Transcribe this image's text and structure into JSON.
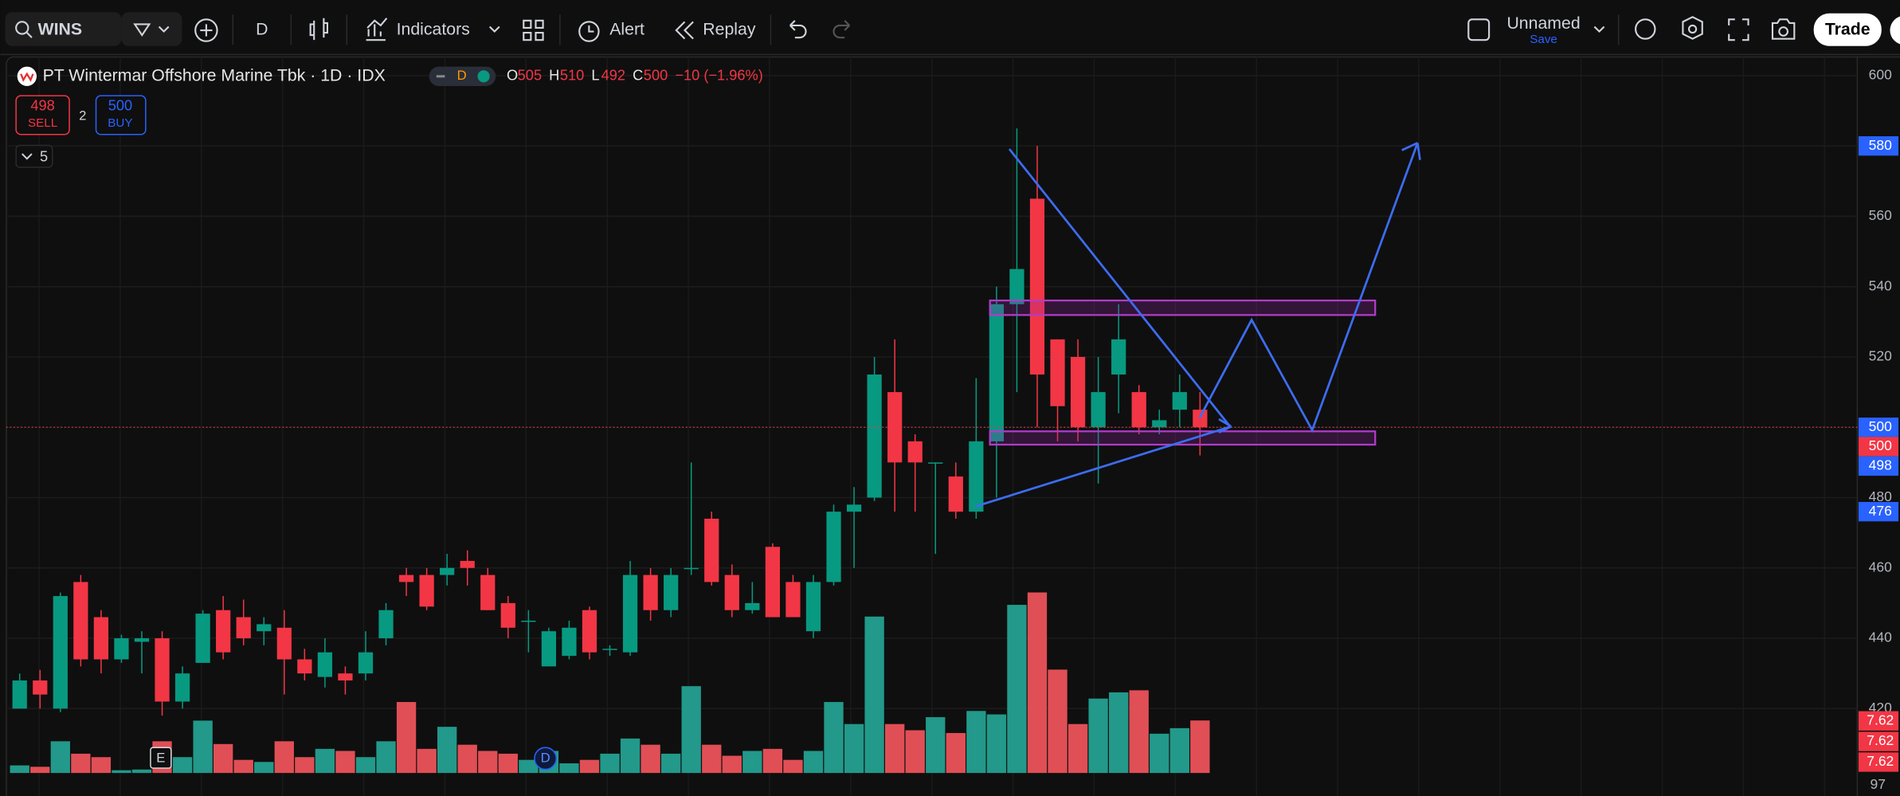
{
  "toolbar": {
    "symbol": "WINS",
    "interval": "D",
    "indicators": "Indicators",
    "alert": "Alert",
    "replay": "Replay",
    "layout": "Unnamed",
    "save": "Save",
    "trade": "Trade"
  },
  "legend": {
    "title": "PT Wintermar Offshore Marine Tbk · 1D · IDX",
    "d": "D",
    "o_label": "O",
    "o": 505,
    "h_label": "H",
    "h": 510,
    "l_label": "L",
    "l": 492,
    "c_label": "C",
    "c": 500,
    "change": "−10 (−1.96%)",
    "sell_price": 498,
    "sell": "SELL",
    "spread": 2,
    "buy_price": 500,
    "buy": "BUY",
    "collapse": 5
  },
  "chart": {
    "type": "candlestick",
    "up_color": "#089981",
    "down_color": "#f23645",
    "volume_up_color": "#22998a",
    "volume_down_color": "#e04f55",
    "ylim": [
      401,
      606
    ],
    "yticks": [
      420,
      440,
      460,
      480,
      500,
      520,
      540,
      560,
      580,
      600
    ],
    "volume_lim": [
      0,
      80
    ],
    "candles": [
      {
        "o": 420,
        "h": 430,
        "l": 420,
        "c": 428
      },
      {
        "o": 428,
        "h": 431,
        "l": 420,
        "c": 424
      },
      {
        "o": 420,
        "h": 453,
        "l": 419,
        "c": 452
      },
      {
        "o": 456,
        "h": 458,
        "l": 432,
        "c": 434
      },
      {
        "o": 446,
        "h": 448,
        "l": 430,
        "c": 434
      },
      {
        "o": 434,
        "h": 441,
        "l": 433,
        "c": 440
      },
      {
        "o": 439,
        "h": 442,
        "l": 430,
        "c": 440
      },
      {
        "o": 440,
        "h": 442,
        "l": 418,
        "c": 422
      },
      {
        "o": 422,
        "h": 432,
        "l": 420,
        "c": 430
      },
      {
        "o": 433,
        "h": 448,
        "l": 433,
        "c": 447
      },
      {
        "o": 448,
        "h": 452,
        "l": 434,
        "c": 436
      },
      {
        "o": 446,
        "h": 451,
        "l": 438,
        "c": 440
      },
      {
        "o": 442,
        "h": 446,
        "l": 438,
        "c": 444
      },
      {
        "o": 443,
        "h": 448,
        "l": 424,
        "c": 434
      },
      {
        "o": 434,
        "h": 437,
        "l": 428,
        "c": 430
      },
      {
        "o": 429,
        "h": 440,
        "l": 426,
        "c": 436
      },
      {
        "o": 430,
        "h": 432,
        "l": 424,
        "c": 428
      },
      {
        "o": 430,
        "h": 442,
        "l": 428,
        "c": 436
      },
      {
        "o": 440,
        "h": 450,
        "l": 438,
        "c": 448
      },
      {
        "o": 458,
        "h": 460,
        "l": 452,
        "c": 456
      },
      {
        "o": 458,
        "h": 460,
        "l": 448,
        "c": 449
      },
      {
        "o": 458,
        "h": 464,
        "l": 455,
        "c": 460
      },
      {
        "o": 462,
        "h": 465,
        "l": 455,
        "c": 460
      },
      {
        "o": 458,
        "h": 460,
        "l": 448,
        "c": 448
      },
      {
        "o": 450,
        "h": 452,
        "l": 440,
        "c": 443
      },
      {
        "o": 445,
        "h": 448,
        "l": 436,
        "c": 445
      },
      {
        "o": 432,
        "h": 443,
        "l": 432,
        "c": 442
      },
      {
        "o": 435,
        "h": 445,
        "l": 434,
        "c": 443
      },
      {
        "o": 448,
        "h": 449,
        "l": 434,
        "c": 436
      },
      {
        "o": 437,
        "h": 438,
        "l": 435,
        "c": 437
      },
      {
        "o": 436,
        "h": 462,
        "l": 435,
        "c": 458
      },
      {
        "o": 458,
        "h": 460,
        "l": 445,
        "c": 448
      },
      {
        "o": 448,
        "h": 460,
        "l": 446,
        "c": 458
      },
      {
        "o": 460,
        "h": 490,
        "l": 458,
        "c": 460
      },
      {
        "o": 474,
        "h": 476,
        "l": 455,
        "c": 456
      },
      {
        "o": 458,
        "h": 461,
        "l": 446,
        "c": 448
      },
      {
        "o": 448,
        "h": 456,
        "l": 447,
        "c": 450
      },
      {
        "o": 466,
        "h": 467,
        "l": 446,
        "c": 446
      },
      {
        "o": 456,
        "h": 458,
        "l": 446,
        "c": 446
      },
      {
        "o": 442,
        "h": 458,
        "l": 440,
        "c": 456
      },
      {
        "o": 456,
        "h": 478,
        "l": 455,
        "c": 476
      },
      {
        "o": 476,
        "h": 483,
        "l": 460,
        "c": 478
      },
      {
        "o": 480,
        "h": 520,
        "l": 479,
        "c": 515
      },
      {
        "o": 510,
        "h": 525,
        "l": 476,
        "c": 490
      },
      {
        "o": 496,
        "h": 498,
        "l": 476,
        "c": 490
      },
      {
        "o": 490,
        "h": 490,
        "l": 464,
        "c": 490
      },
      {
        "o": 486,
        "h": 490,
        "l": 474,
        "c": 476
      },
      {
        "o": 476,
        "h": 514,
        "l": 474,
        "c": 496
      },
      {
        "o": 496,
        "h": 540,
        "l": 480,
        "c": 535
      },
      {
        "o": 535,
        "h": 585,
        "l": 510,
        "c": 545
      },
      {
        "o": 565,
        "h": 580,
        "l": 500,
        "c": 515
      },
      {
        "o": 525,
        "h": 525,
        "l": 496,
        "c": 506
      },
      {
        "o": 520,
        "h": 525,
        "l": 496,
        "c": 500
      },
      {
        "o": 500,
        "h": 520,
        "l": 484,
        "c": 510
      },
      {
        "o": 515,
        "h": 535,
        "l": 504,
        "c": 525
      },
      {
        "o": 510,
        "h": 512,
        "l": 498,
        "c": 500
      },
      {
        "o": 500,
        "h": 505,
        "l": 498,
        "c": 502
      },
      {
        "o": 505,
        "h": 515,
        "l": 500,
        "c": 510
      },
      {
        "o": 505,
        "h": 510,
        "l": 492,
        "c": 500
      }
    ],
    "volume": [
      1.1,
      0.9,
      4.6,
      2.8,
      2.3,
      0.4,
      0.5,
      4.6,
      2.3,
      7.6,
      4.2,
      1.9,
      1.6,
      4.6,
      2.3,
      3.5,
      3.2,
      2.3,
      4.6,
      10.3,
      3.5,
      6.7,
      4.1,
      3.2,
      2.8,
      1.9,
      3.2,
      1.4,
      1.9,
      2.8,
      5.0,
      4.1,
      2.8,
      12.6,
      4.1,
      2.5,
      3.2,
      3.5,
      1.9,
      3.2,
      10.3,
      7.1,
      22.7,
      7.1,
      6.2,
      8.1,
      5.8,
      9.0,
      8.5,
      24.4,
      26.2,
      15.0,
      7.1,
      10.8,
      11.7,
      12.0,
      5.7,
      6.5,
      7.62
    ],
    "price_badges": [
      {
        "value": 580,
        "color": "#2962ff"
      },
      {
        "value": 500,
        "color": "#2962ff"
      },
      {
        "value": 500,
        "color": "#f23645"
      },
      {
        "value": 498,
        "color": "#2962ff"
      },
      {
        "value": 476,
        "color": "#2962ff"
      }
    ],
    "volume_badges": [
      "7.62",
      "7.62",
      "7.62"
    ],
    "bottom_label": 97,
    "markers": [
      "E",
      "D"
    ]
  }
}
